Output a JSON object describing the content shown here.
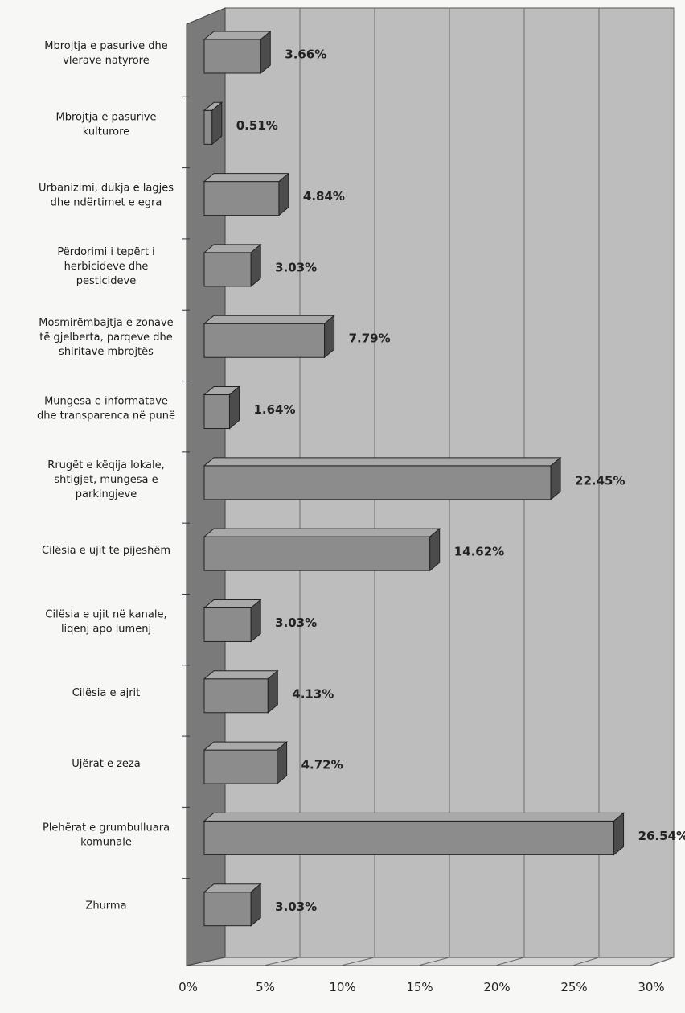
{
  "chart_data": {
    "type": "bar",
    "orientation": "horizontal",
    "three_d": true,
    "categories": [
      [
        "Mbrojtja e pasurive dhe",
        "vlerave natyrore"
      ],
      [
        "Mbrojtja e pasurive",
        "kulturore"
      ],
      [
        "Urbanizimi, dukja e lagjes",
        "dhe ndërtimet e egra"
      ],
      [
        "Përdorimi i tepërt i",
        "herbicideve dhe",
        "pesticideve"
      ],
      [
        "Mosmirëmbajtja e zonave",
        "të gjelberta, parqeve dhe",
        "shiritave mbrojtës"
      ],
      [
        "Mungesa e informatave",
        "dhe transparenca në punë"
      ],
      [
        "Rrugët e këqija lokale,",
        "shtigjet, mungesa e",
        "parkingjeve"
      ],
      [
        "Cilësia e ujit te pijeshëm"
      ],
      [
        "Cilësia e ujit në kanale,",
        "liqenj apo lumenj"
      ],
      [
        "Cilësia e ajrit"
      ],
      [
        "Ujërat e zeza"
      ],
      [
        "Plehërat e grumbulluara",
        "komunale"
      ],
      [
        "Zhurma"
      ]
    ],
    "values": [
      3.66,
      0.51,
      4.84,
      3.03,
      7.79,
      1.64,
      22.45,
      14.62,
      3.03,
      4.13,
      4.72,
      26.54,
      3.03
    ],
    "value_labels": [
      "3.66%",
      "0.51%",
      "4.84%",
      "3.03%",
      "7.79%",
      "1.64%",
      "22.45%",
      "14.62%",
      "3.03%",
      "4.13%",
      "4.72%",
      "26.54%",
      "3.03%"
    ],
    "xlim": [
      0,
      30
    ],
    "x_ticks": [
      0,
      5,
      10,
      15,
      20,
      25,
      30
    ],
    "x_tick_labels": [
      "0%",
      "5%",
      "10%",
      "15%",
      "20%",
      "25%",
      "30%"
    ],
    "grid": true,
    "legend": "none",
    "colors": {
      "bar_front": "#8c8c8c",
      "bar_top": "#a9a9a9",
      "bar_side": "#4c4c4c",
      "plot_back": "#bdbdbd",
      "plot_wall": "#7a7a7a",
      "plot_floor": "#d2d2d2",
      "gridline": "#6a6a6a"
    }
  }
}
